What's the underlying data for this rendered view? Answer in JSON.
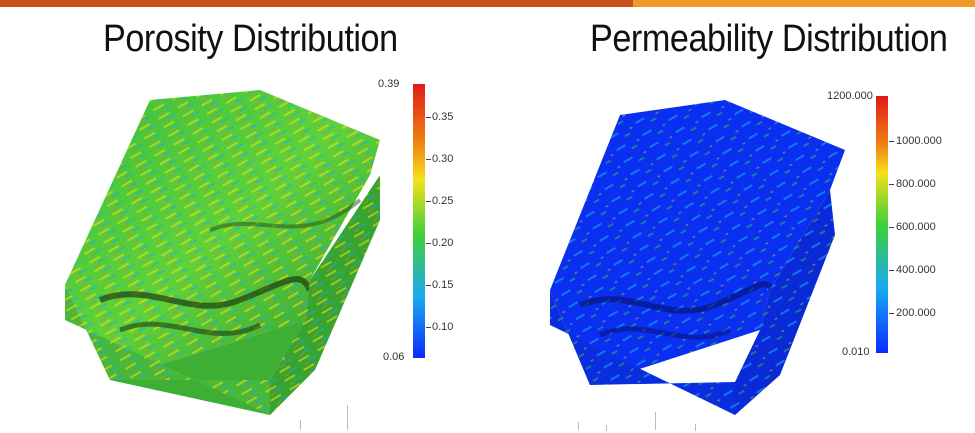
{
  "panels": [
    {
      "title": "Porosity Distribution",
      "colorbar": {
        "min_label": "0.06",
        "max_label": "0.39",
        "ticks": [
          "0.35",
          "0.30",
          "0.25",
          "0.20",
          "0.15",
          "0.10"
        ]
      },
      "colors": [
        "#0a2bff",
        "#19a9f2",
        "#3fd03a",
        "#f5e11a",
        "#f07a12",
        "#e01b1b"
      ]
    },
    {
      "title": "Permeability Distribution",
      "colorbar": {
        "min_label": "0.010",
        "max_label": "1200.000",
        "ticks": [
          "1000.000",
          "800.000",
          "600.000",
          "400.000",
          "200.000"
        ]
      },
      "colors": [
        "#0a2bff",
        "#19a9f2",
        "#3fd03a",
        "#f5e11a",
        "#f07a12",
        "#e01b1b"
      ]
    }
  ],
  "theme": {
    "bar_dark": "#c8501c",
    "bar_light": "#ef9a2a"
  }
}
